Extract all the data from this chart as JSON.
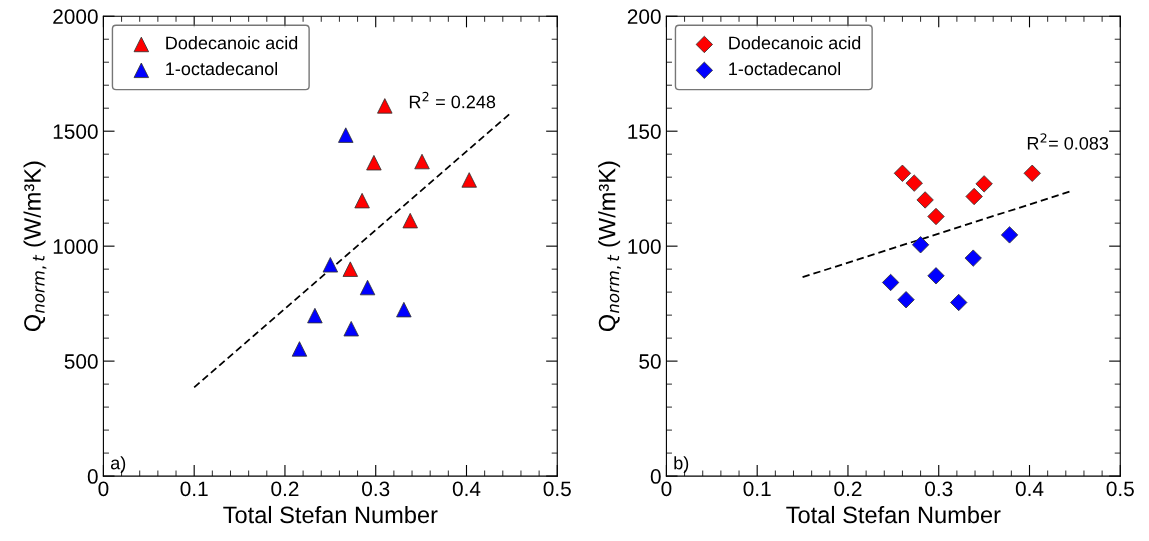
{
  "chart_data": [
    {
      "type": "scatter",
      "xlabel": "Total Stefan Number",
      "ylabel": "Q$_{norm,t}$ (W/m³K)",
      "xlim": [
        0,
        0.5
      ],
      "xticks": [
        0,
        0.1,
        0.2,
        0.3,
        0.4,
        0.5
      ],
      "ylim": [
        0,
        2000
      ],
      "yticks": [
        0,
        500,
        1000,
        1500,
        2000
      ],
      "marker": "triangle",
      "legend": "top left",
      "grid": false,
      "annotations": [
        "a)",
        "R$^{2}$ = 0.248"
      ],
      "series": [
        {
          "name": "Dodecanoic acid",
          "color": "#ff0000",
          "x": [
            0.31,
            0.298,
            0.351,
            0.403,
            0.285,
            0.338,
            0.272
          ],
          "values": [
            1610,
            1363,
            1368,
            1288,
            1198,
            1111,
            900
          ]
        },
        {
          "name": "1-octadecanol",
          "color": "#0000ff",
          "x": [
            0.267,
            0.25,
            0.291,
            0.331,
            0.233,
            0.273,
            0.216
          ],
          "values": [
            1483,
            919,
            820,
            724,
            698,
            641,
            553
          ]
        },
        {
          "type": "line",
          "color": "#000000",
          "line_style": "dashed",
          "marker": "none",
          "x": [
            0.1,
            0.447
          ],
          "values": [
            386,
            1573
          ]
        }
      ]
    },
    {
      "type": "scatter",
      "xlabel": "Total Stefan Number",
      "ylabel": "Q$_{norm,t}$ (W/m³K)",
      "xlim": [
        0,
        0.5
      ],
      "xticks": [
        0,
        0.1,
        0.2,
        0.3,
        0.4,
        0.5
      ],
      "ylim": [
        0,
        200
      ],
      "yticks": [
        0,
        50,
        100,
        150,
        200
      ],
      "marker": "diamond",
      "legend": "top left",
      "grid": false,
      "annotations": [
        "b)",
        "R$^{2}$= 0.083"
      ],
      "series": [
        {
          "name": "Dodecanoic acid",
          "color": "#ff0000",
          "x": [
            0.26,
            0.273,
            0.285,
            0.297,
            0.339,
            0.35,
            0.403
          ],
          "values": [
            131.7,
            127.4,
            120.1,
            112.9,
            121.6,
            127.1,
            131.7
          ]
        },
        {
          "name": "1-octadecanol",
          "color": "#0000ff",
          "x": [
            0.28,
            0.247,
            0.264,
            0.297,
            0.338,
            0.322,
            0.378
          ],
          "values": [
            100.6,
            84.2,
            76.7,
            87.1,
            94.8,
            75.5,
            104.9
          ]
        },
        {
          "type": "line",
          "color": "#000000",
          "line_style": "dashed",
          "marker": "none",
          "x": [
            0.15,
            0.444
          ],
          "values": [
            86.5,
            123.7
          ]
        }
      ]
    }
  ]
}
